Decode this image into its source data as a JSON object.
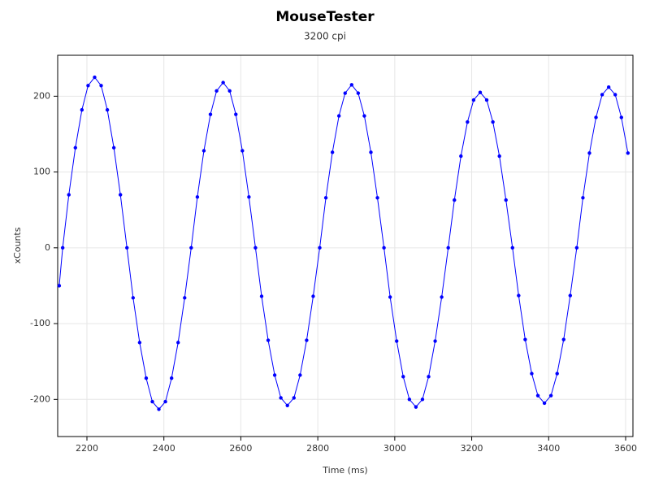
{
  "chart_data": {
    "type": "line",
    "title": "MouseTester",
    "subtitle": "3200 cpi",
    "x_label": "Time (ms)",
    "y_label": "xCounts",
    "xlim": [
      2124,
      3619
    ],
    "ylim": [
      -249,
      254
    ],
    "xticks": [
      2200,
      2400,
      2600,
      2800,
      3000,
      3200,
      3400,
      3600
    ],
    "yticks": [
      -200,
      -100,
      0,
      100,
      200
    ],
    "grid": true,
    "markers": true,
    "series": [
      {
        "color": "#0000ff",
        "x": [
          2128,
          2137,
          2153,
          2170,
          2187,
          2203,
          2220,
          2237,
          2253,
          2270,
          2287,
          2304,
          2320,
          2337,
          2354,
          2370,
          2387,
          2404,
          2420,
          2437,
          2454,
          2471,
          2487,
          2504,
          2521,
          2537,
          2554,
          2571,
          2587,
          2604,
          2621,
          2638,
          2654,
          2671,
          2688,
          2704,
          2721,
          2738,
          2754,
          2771,
          2788,
          2805,
          2821,
          2838,
          2855,
          2871,
          2888,
          2905,
          2921,
          2938,
          2955,
          2972,
          2988,
          3005,
          3022,
          3038,
          3055,
          3072,
          3088,
          3105,
          3122,
          3139,
          3155,
          3172,
          3189,
          3205,
          3222,
          3239,
          3255,
          3272,
          3289,
          3306,
          3322,
          3339,
          3356,
          3372,
          3389,
          3406,
          3422,
          3439,
          3456,
          3473,
          3489,
          3506,
          3523,
          3539,
          3556,
          3573,
          3589,
          3606
        ],
        "values": [
          -50,
          0,
          70,
          132,
          182,
          214,
          225,
          214,
          182,
          132,
          70,
          0,
          -66,
          -125,
          -172,
          -203,
          -213,
          -203,
          -172,
          -125,
          -66,
          0,
          67,
          128,
          176,
          207,
          218,
          207,
          176,
          128,
          67,
          0,
          -64,
          -122,
          -168,
          -198,
          -208,
          -198,
          -168,
          -122,
          -64,
          0,
          66,
          126,
          174,
          204,
          215,
          204,
          174,
          126,
          66,
          0,
          -65,
          -123,
          -170,
          -200,
          -210,
          -200,
          -170,
          -123,
          -65,
          0,
          63,
          121,
          166,
          195,
          205,
          195,
          166,
          121,
          63,
          0,
          -63,
          -121,
          -166,
          -195,
          -205,
          -195,
          -166,
          -121,
          -63,
          0,
          66,
          125,
          172,
          202,
          212,
          202,
          172,
          125
        ]
      }
    ]
  }
}
